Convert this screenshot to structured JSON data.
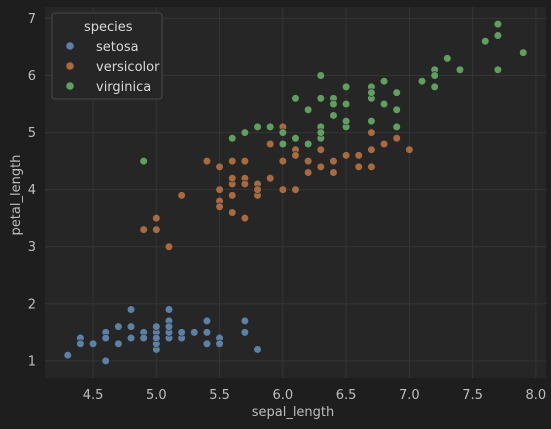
{
  "chart_data": {
    "type": "scatter",
    "xlabel": "sepal_length",
    "ylabel": "petal_length",
    "xlim": [
      4.12,
      8.08
    ],
    "ylim": [
      0.7,
      7.2
    ],
    "x_ticks": [
      "4.5",
      "5.0",
      "5.5",
      "6.0",
      "6.5",
      "7.0",
      "7.5",
      "8.0"
    ],
    "y_ticks": [
      "1",
      "2",
      "3",
      "4",
      "5",
      "6",
      "7"
    ],
    "grid": true,
    "legend": {
      "title": "species",
      "position": "top-left"
    },
    "colors": {
      "setosa": "#5b82a6",
      "versicolor": "#a86a3e",
      "virginica": "#5fa05f"
    },
    "series": [
      {
        "name": "setosa",
        "points": [
          [
            5.1,
            1.4
          ],
          [
            4.9,
            1.4
          ],
          [
            4.7,
            1.3
          ],
          [
            4.6,
            1.5
          ],
          [
            5.0,
            1.4
          ],
          [
            5.4,
            1.7
          ],
          [
            4.6,
            1.4
          ],
          [
            5.0,
            1.5
          ],
          [
            4.4,
            1.4
          ],
          [
            4.9,
            1.5
          ],
          [
            5.4,
            1.5
          ],
          [
            4.8,
            1.6
          ],
          [
            4.8,
            1.4
          ],
          [
            4.3,
            1.1
          ],
          [
            5.8,
            1.2
          ],
          [
            5.7,
            1.5
          ],
          [
            5.4,
            1.3
          ],
          [
            5.1,
            1.4
          ],
          [
            5.7,
            1.7
          ],
          [
            5.1,
            1.5
          ],
          [
            5.4,
            1.7
          ],
          [
            5.1,
            1.5
          ],
          [
            4.6,
            1.0
          ],
          [
            5.1,
            1.7
          ],
          [
            4.8,
            1.9
          ],
          [
            5.0,
            1.6
          ],
          [
            5.0,
            1.6
          ],
          [
            5.2,
            1.5
          ],
          [
            5.2,
            1.4
          ],
          [
            4.7,
            1.6
          ],
          [
            4.8,
            1.6
          ],
          [
            5.4,
            1.5
          ],
          [
            5.2,
            1.5
          ],
          [
            5.5,
            1.4
          ],
          [
            4.9,
            1.5
          ],
          [
            5.0,
            1.2
          ],
          [
            5.5,
            1.3
          ],
          [
            4.9,
            1.4
          ],
          [
            4.4,
            1.3
          ],
          [
            5.1,
            1.5
          ],
          [
            5.0,
            1.3
          ],
          [
            4.5,
            1.3
          ],
          [
            4.4,
            1.3
          ],
          [
            5.0,
            1.6
          ],
          [
            5.1,
            1.9
          ],
          [
            4.8,
            1.4
          ],
          [
            5.1,
            1.6
          ],
          [
            4.6,
            1.4
          ],
          [
            5.3,
            1.5
          ],
          [
            5.0,
            1.4
          ]
        ]
      },
      {
        "name": "versicolor",
        "points": [
          [
            7.0,
            4.7
          ],
          [
            6.4,
            4.5
          ],
          [
            6.9,
            4.9
          ],
          [
            5.5,
            4.0
          ],
          [
            6.5,
            4.6
          ],
          [
            5.7,
            4.5
          ],
          [
            6.3,
            4.7
          ],
          [
            4.9,
            3.3
          ],
          [
            6.6,
            4.6
          ],
          [
            5.2,
            3.9
          ],
          [
            5.0,
            3.5
          ],
          [
            5.9,
            4.2
          ],
          [
            6.0,
            4.0
          ],
          [
            6.1,
            4.7
          ],
          [
            5.6,
            3.6
          ],
          [
            6.7,
            4.4
          ],
          [
            5.6,
            4.5
          ],
          [
            5.8,
            4.1
          ],
          [
            6.2,
            4.5
          ],
          [
            5.6,
            3.9
          ],
          [
            5.9,
            4.8
          ],
          [
            6.1,
            4.0
          ],
          [
            6.3,
            4.9
          ],
          [
            6.1,
            4.7
          ],
          [
            6.4,
            4.3
          ],
          [
            6.6,
            4.4
          ],
          [
            6.8,
            4.8
          ],
          [
            6.7,
            5.0
          ],
          [
            6.0,
            4.5
          ],
          [
            5.7,
            3.5
          ],
          [
            5.5,
            3.8
          ],
          [
            5.5,
            3.7
          ],
          [
            5.8,
            3.9
          ],
          [
            6.0,
            5.1
          ],
          [
            5.4,
            4.5
          ],
          [
            6.0,
            4.5
          ],
          [
            6.7,
            4.7
          ],
          [
            6.3,
            4.4
          ],
          [
            5.6,
            4.1
          ],
          [
            5.5,
            4.0
          ],
          [
            5.5,
            4.4
          ],
          [
            6.1,
            4.6
          ],
          [
            5.8,
            4.0
          ],
          [
            5.0,
            3.3
          ],
          [
            5.6,
            4.2
          ],
          [
            5.7,
            4.2
          ],
          [
            5.7,
            4.2
          ],
          [
            6.2,
            4.3
          ],
          [
            5.1,
            3.0
          ],
          [
            5.7,
            4.1
          ]
        ]
      },
      {
        "name": "virginica",
        "points": [
          [
            6.3,
            6.0
          ],
          [
            5.8,
            5.1
          ],
          [
            7.1,
            5.9
          ],
          [
            6.3,
            5.6
          ],
          [
            6.5,
            5.8
          ],
          [
            7.6,
            6.6
          ],
          [
            4.9,
            4.5
          ],
          [
            7.3,
            6.3
          ],
          [
            6.7,
            5.8
          ],
          [
            7.2,
            6.1
          ],
          [
            6.5,
            5.1
          ],
          [
            6.4,
            5.3
          ],
          [
            6.8,
            5.5
          ],
          [
            5.7,
            5.0
          ],
          [
            5.8,
            5.1
          ],
          [
            6.4,
            5.3
          ],
          [
            6.5,
            5.5
          ],
          [
            7.7,
            6.7
          ],
          [
            7.7,
            6.9
          ],
          [
            6.0,
            5.0
          ],
          [
            6.9,
            5.7
          ],
          [
            5.6,
            4.9
          ],
          [
            7.7,
            6.7
          ],
          [
            6.3,
            4.9
          ],
          [
            6.7,
            5.7
          ],
          [
            7.2,
            6.0
          ],
          [
            6.2,
            4.8
          ],
          [
            6.1,
            4.9
          ],
          [
            6.4,
            5.6
          ],
          [
            7.2,
            5.8
          ],
          [
            7.4,
            6.1
          ],
          [
            7.9,
            6.4
          ],
          [
            6.4,
            5.6
          ],
          [
            6.3,
            5.1
          ],
          [
            6.1,
            5.6
          ],
          [
            7.7,
            6.1
          ],
          [
            6.3,
            5.6
          ],
          [
            6.4,
            5.5
          ],
          [
            6.0,
            4.8
          ],
          [
            6.9,
            5.4
          ],
          [
            6.7,
            5.6
          ],
          [
            6.9,
            5.1
          ],
          [
            5.8,
            5.1
          ],
          [
            6.8,
            5.9
          ],
          [
            6.7,
            5.7
          ],
          [
            6.7,
            5.2
          ],
          [
            6.3,
            5.0
          ],
          [
            6.5,
            5.2
          ],
          [
            6.2,
            5.4
          ],
          [
            5.9,
            5.1
          ]
        ]
      }
    ]
  }
}
